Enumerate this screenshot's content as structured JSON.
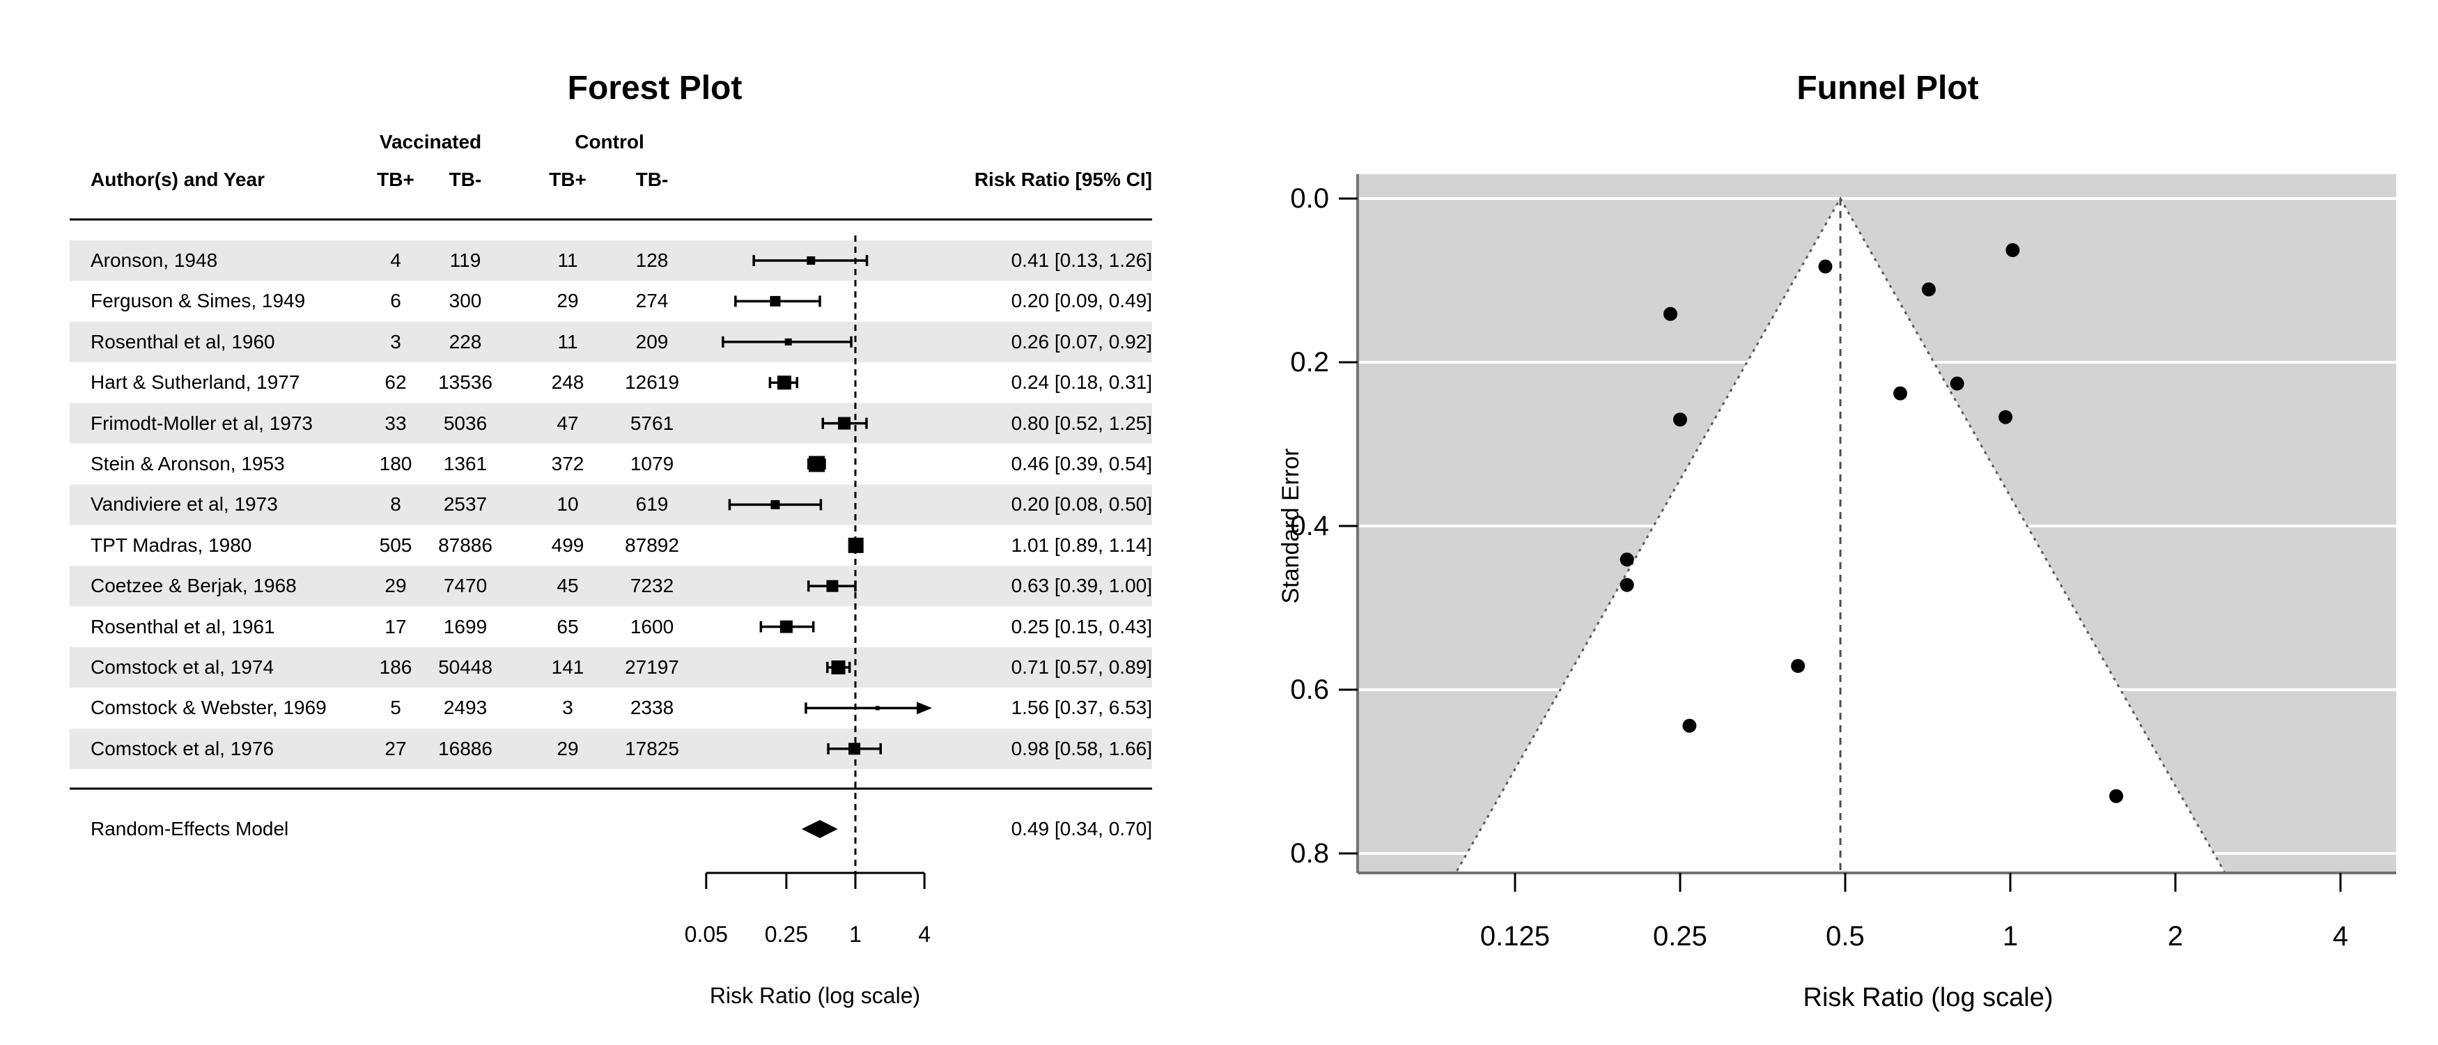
{
  "forest": {
    "header": {
      "author": "Author(s) and Year",
      "group_vaccinated": "Vaccinated",
      "group_control": "Control",
      "col_labels": [
        "TB+",
        "TB-",
        "TB+",
        "TB-"
      ],
      "risk_ratio": "Risk Ratio [95% CI]"
    }
  },
  "style": {
    "band_color": "#e8e8e8",
    "funnel_bg_color": "#d3d3d3",
    "funnel_grid_color": "#ffffff",
    "funnel_region_color": "#ffffff",
    "point_color": "#000000",
    "axis_gray": "#737373",
    "dotted_gray": "#595959"
  },
  "chart_data": [
    {
      "type": "table",
      "subtype": "forest_plot",
      "title": "Forest Plot",
      "columns": [
        "Author(s) and Year",
        "Vaccinated TB+",
        "Vaccinated TB-",
        "Control TB+",
        "Control TB-",
        "Risk Ratio [95% CI]"
      ],
      "x_scale": "log",
      "x_ticks": [
        0.05,
        0.25,
        1,
        4
      ],
      "x_tick_labels": [
        "0.05",
        "0.25",
        "1",
        "4"
      ],
      "xlabel": "Risk Ratio (log scale)",
      "reference_line": 1,
      "rows": [
        {
          "author": "Aronson, 1948",
          "v_pos": "4",
          "v_neg": "119",
          "c_pos": "11",
          "c_neg": "128",
          "estimate": 0.41,
          "ci_low": 0.13,
          "ci_high": 1.26,
          "label": "0.41 [0.13, 1.26]",
          "box": 12,
          "shaded": true
        },
        {
          "author": "Ferguson & Simes, 1949",
          "v_pos": "6",
          "v_neg": "300",
          "c_pos": "29",
          "c_neg": "274",
          "estimate": 0.2,
          "ci_low": 0.09,
          "ci_high": 0.49,
          "label": "0.20 [0.09, 0.49]",
          "box": 15,
          "shaded": false
        },
        {
          "author": "Rosenthal et al, 1960",
          "v_pos": "3",
          "v_neg": "228",
          "c_pos": "11",
          "c_neg": "209",
          "estimate": 0.26,
          "ci_low": 0.07,
          "ci_high": 0.92,
          "label": "0.26 [0.07, 0.92]",
          "box": 10,
          "shaded": true
        },
        {
          "author": "Hart & Sutherland, 1977",
          "v_pos": "62",
          "v_neg": "13536",
          "c_pos": "248",
          "c_neg": "12619",
          "estimate": 0.24,
          "ci_low": 0.18,
          "ci_high": 0.31,
          "label": "0.24 [0.18, 0.31]",
          "box": 20,
          "shaded": false
        },
        {
          "author": "Frimodt-Moller et al, 1973",
          "v_pos": "33",
          "v_neg": "5036",
          "c_pos": "47",
          "c_neg": "5761",
          "estimate": 0.8,
          "ci_low": 0.52,
          "ci_high": 1.25,
          "label": "0.80 [0.52, 1.25]",
          "box": 18,
          "shaded": true
        },
        {
          "author": "Stein & Aronson, 1953",
          "v_pos": "180",
          "v_neg": "1361",
          "c_pos": "372",
          "c_neg": "1079",
          "estimate": 0.46,
          "ci_low": 0.39,
          "ci_high": 0.54,
          "label": "0.46 [0.39, 0.54]",
          "box": 23,
          "shaded": false
        },
        {
          "author": "Vandiviere et al, 1973",
          "v_pos": "8",
          "v_neg": "2537",
          "c_pos": "10",
          "c_neg": "619",
          "estimate": 0.2,
          "ci_low": 0.08,
          "ci_high": 0.5,
          "label": "0.20 [0.08, 0.50]",
          "box": 13,
          "shaded": true
        },
        {
          "author": "TPT Madras, 1980",
          "v_pos": "505",
          "v_neg": "87886",
          "c_pos": "499",
          "c_neg": "87892",
          "estimate": 1.01,
          "ci_low": 0.89,
          "ci_high": 1.14,
          "label": "1.01 [0.89, 1.14]",
          "box": 22,
          "shaded": false
        },
        {
          "author": "Coetzee & Berjak, 1968",
          "v_pos": "29",
          "v_neg": "7470",
          "c_pos": "45",
          "c_neg": "7232",
          "estimate": 0.63,
          "ci_low": 0.39,
          "ci_high": 1.0,
          "label": "0.63 [0.39, 1.00]",
          "box": 17,
          "shaded": true
        },
        {
          "author": "Rosenthal et al, 1961",
          "v_pos": "17",
          "v_neg": "1699",
          "c_pos": "65",
          "c_neg": "1600",
          "estimate": 0.25,
          "ci_low": 0.15,
          "ci_high": 0.43,
          "label": "0.25 [0.15, 0.43]",
          "box": 18,
          "shaded": false
        },
        {
          "author": "Comstock et al, 1974",
          "v_pos": "186",
          "v_neg": "50448",
          "c_pos": "141",
          "c_neg": "27197",
          "estimate": 0.71,
          "ci_low": 0.57,
          "ci_high": 0.89,
          "label": "0.71 [0.57, 0.89]",
          "box": 20,
          "shaded": true
        },
        {
          "author": "Comstock & Webster, 1969",
          "v_pos": "5",
          "v_neg": "2493",
          "c_pos": "3",
          "c_neg": "2338",
          "estimate": 1.56,
          "ci_low": 0.37,
          "ci_high": 6.53,
          "label": "1.56 [0.37, 6.53]",
          "box": 6,
          "shaded": false
        },
        {
          "author": "Comstock et al, 1976",
          "v_pos": "27",
          "v_neg": "16886",
          "c_pos": "29",
          "c_neg": "17825",
          "estimate": 0.98,
          "ci_low": 0.58,
          "ci_high": 1.66,
          "label": "0.98 [0.58, 1.66]",
          "box": 17,
          "shaded": true
        }
      ],
      "summary": {
        "label": "Random-Effects Model",
        "estimate": 0.49,
        "ci_low": 0.34,
        "ci_high": 0.7,
        "text": "0.49 [0.34, 0.70]"
      }
    },
    {
      "type": "scatter",
      "subtype": "funnel_plot",
      "title": "Funnel Plot",
      "xlabel": "Risk Ratio (log scale)",
      "ylabel": "Standard Error",
      "x_scale": "log",
      "x_ticks": [
        0.125,
        0.25,
        0.5,
        1,
        2,
        4
      ],
      "x_tick_labels": [
        "0.125",
        "0.25",
        "0.5",
        "1",
        "2",
        "4"
      ],
      "y_ticks": [
        0.0,
        0.2,
        0.4,
        0.6,
        0.8
      ],
      "y_tick_labels": [
        "0.0",
        "0.2",
        "0.4",
        "0.6",
        "0.8"
      ],
      "y_axis_inverted": true,
      "ylim": [
        0,
        0.83
      ],
      "center_estimate": 0.49,
      "pseudo_ci_level": "95%",
      "points": [
        {
          "label": "Aronson, 1948",
          "x": 0.41,
          "y": 0.571
        },
        {
          "label": "Ferguson & Simes, 1949",
          "x": 0.2,
          "y": 0.441
        },
        {
          "label": "Rosenthal et al, 1960",
          "x": 0.26,
          "y": 0.644
        },
        {
          "label": "Hart & Sutherland, 1977",
          "x": 0.24,
          "y": 0.141
        },
        {
          "label": "Frimodt-Moller et al, 1973",
          "x": 0.8,
          "y": 0.226
        },
        {
          "label": "Stein & Aronson, 1953",
          "x": 0.46,
          "y": 0.083
        },
        {
          "label": "Vandiviere et al, 1973",
          "x": 0.2,
          "y": 0.472
        },
        {
          "label": "TPT Madras, 1980",
          "x": 1.01,
          "y": 0.063
        },
        {
          "label": "Coetzee & Berjak, 1968",
          "x": 0.63,
          "y": 0.238
        },
        {
          "label": "Rosenthal et al, 1961",
          "x": 0.25,
          "y": 0.27
        },
        {
          "label": "Comstock et al, 1974",
          "x": 0.71,
          "y": 0.111
        },
        {
          "label": "Comstock & Webster, 1969",
          "x": 1.56,
          "y": 0.73
        },
        {
          "label": "Comstock et al, 1976",
          "x": 0.98,
          "y": 0.267
        }
      ]
    }
  ]
}
